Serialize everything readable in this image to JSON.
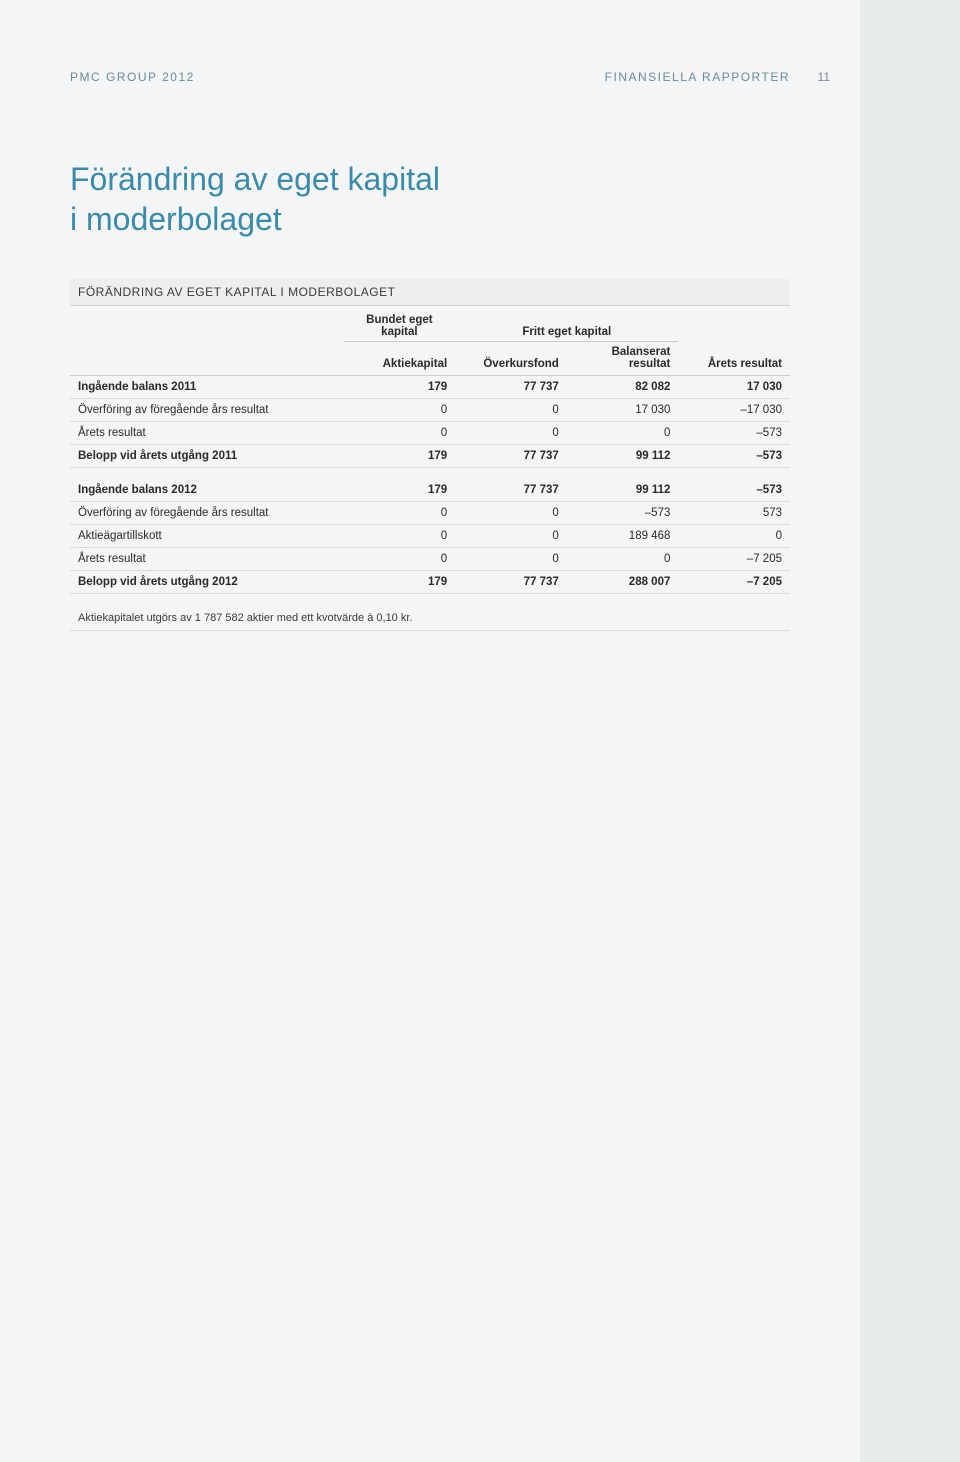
{
  "header": {
    "left": "PMC GROUP 2012",
    "right": "FINANSIELLA RAPPORTER",
    "page_number": "11"
  },
  "title_line1": "Förändring av eget kapital",
  "title_line2": "i moderbolaget",
  "table": {
    "caption": "FÖRÄNDRING AV EGET KAPITAL I MODERBOLAGET",
    "group_headers": {
      "bundet": "Bundet eget kapital",
      "fritt": "Fritt eget kapital"
    },
    "columns": {
      "c1": "Aktiekapital",
      "c2": "Överkursfond",
      "c3": "Balanserat resultat",
      "c4": "Årets resultat"
    },
    "section1": [
      {
        "label": "Ingående balans 2011",
        "c1": "179",
        "c2": "77 737",
        "c3": "82 082",
        "c4": "17 030",
        "bold": true
      },
      {
        "label": "Överföring av föregående års resultat",
        "c1": "0",
        "c2": "0",
        "c3": "17 030",
        "c4": "–17 030"
      },
      {
        "label": "Årets resultat",
        "c1": "0",
        "c2": "0",
        "c3": "0",
        "c4": "–573"
      },
      {
        "label": "Belopp vid årets utgång 2011",
        "c1": "179",
        "c2": "77 737",
        "c3": "99 112",
        "c4": "–573",
        "bold": true
      }
    ],
    "section2": [
      {
        "label": "Ingående balans 2012",
        "c1": "179",
        "c2": "77 737",
        "c3": "99 112",
        "c4": "–573",
        "bold": true
      },
      {
        "label": "Överföring av föregående års resultat",
        "c1": "0",
        "c2": "0",
        "c3": "–573",
        "c4": "573"
      },
      {
        "label": "Aktieägartillskott",
        "c1": "0",
        "c2": "0",
        "c3": "189 468",
        "c4": "0"
      },
      {
        "label": "Årets resultat",
        "c1": "0",
        "c2": "0",
        "c3": "0",
        "c4": "–7 205"
      },
      {
        "label": "Belopp vid årets utgång 2012",
        "c1": "179",
        "c2": "77 737",
        "c3": "288 007",
        "c4": "–7 205",
        "bold": true
      }
    ]
  },
  "footnote": "Aktiekapitalet utgörs av 1 787 582 aktier med ett kvotvärde à 0,10 kr."
}
